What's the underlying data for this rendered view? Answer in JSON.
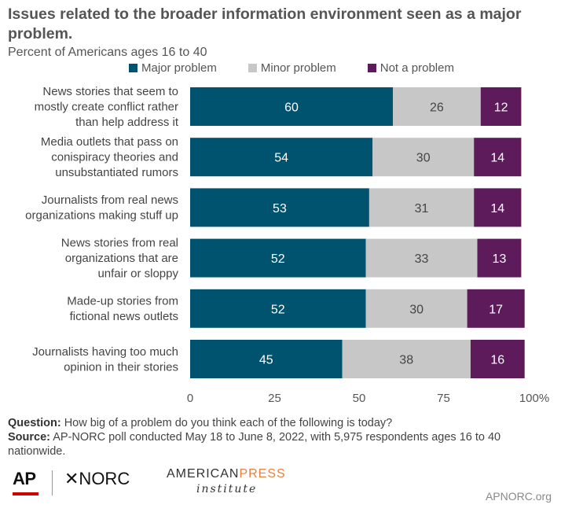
{
  "chart_data": {
    "type": "bar",
    "stacked": true,
    "orientation": "horizontal",
    "title": "Issues related to the broader information environment seen as a major problem.",
    "subtitle": "Percent of Americans ages 16 to 40",
    "categories": [
      [
        "News stories that seem to",
        "mostly create conflict rather",
        "than help address it"
      ],
      [
        "Media outlets that pass on",
        "conispiracy theories and",
        "unsubstantiated rumors"
      ],
      [
        "Journalists from real news",
        "organizations making stuff up"
      ],
      [
        "News stories from real",
        "organizations that are",
        "unfair or sloppy"
      ],
      [
        "Made-up stories from",
        "fictional news outlets"
      ],
      [
        "Journalists having too much",
        "opinion in their stories"
      ]
    ],
    "series": [
      {
        "name": "Major problem",
        "color": "#00536e",
        "label_color": "#ffffff",
        "values": [
          60,
          54,
          53,
          52,
          52,
          45
        ]
      },
      {
        "name": "Minor problem",
        "color": "#c8c7c7",
        "label_color": "#444444",
        "values": [
          26,
          30,
          31,
          33,
          30,
          38
        ]
      },
      {
        "name": "Not a problem",
        "color": "#5e1b5c",
        "label_color": "#ffffff",
        "values": [
          12,
          14,
          14,
          13,
          17,
          16
        ]
      }
    ],
    "xlim": [
      0,
      100
    ],
    "xticks": [
      "0",
      "25",
      "50",
      "75",
      "100%"
    ],
    "legend_position": "top",
    "grid": false
  },
  "legend": [
    {
      "label": "Major problem",
      "color": "#00536e"
    },
    {
      "label": "Minor problem",
      "color": "#c8c7c7"
    },
    {
      "label": "Not a problem",
      "color": "#5e1b5c"
    }
  ],
  "notes": {
    "question_label": "Question:",
    "question_text": " How big of a problem do you think each of the following is today?",
    "source_label": "Source:",
    "source_text": " AP-NORC poll conducted May 18 to June 8, 2022, with 5,975 respondents ages 16 to 40 nationwide."
  },
  "logos": {
    "ap": "AP",
    "norc": "✕NORC",
    "api_american": "AMERICAN",
    "api_press": "PRESS",
    "api_institute": "institute"
  },
  "credit": "APNORC.org"
}
